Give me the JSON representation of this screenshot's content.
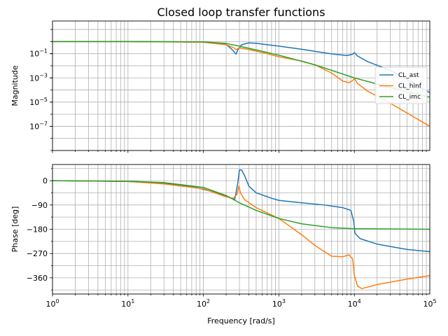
{
  "chart_data": {
    "type": "line",
    "title": "Closed loop transfer functions",
    "xscale": "log",
    "xlim": [
      1,
      100000
    ],
    "xticks": [
      {
        "value": 1,
        "base": "10",
        "exp": "0"
      },
      {
        "value": 10,
        "base": "10",
        "exp": "1"
      },
      {
        "value": 100,
        "base": "10",
        "exp": "2"
      },
      {
        "value": 1000,
        "base": "10",
        "exp": "3"
      },
      {
        "value": 10000,
        "base": "10",
        "exp": "4"
      },
      {
        "value": 100000,
        "base": "10",
        "exp": "5"
      }
    ],
    "xlabel": "Frequency [rad/s]",
    "grid": true,
    "series_colors": {
      "CL_ast": "#1f77b4",
      "CL_hinf": "#ff7f0e",
      "CL_imc": "#2ca02c"
    },
    "magnitude": {
      "ylabel": "Magnitude",
      "yscale": "log",
      "ylim": [
        1e-09,
        50
      ],
      "yticks": [
        {
          "value": 0.1,
          "base": "10",
          "exp": "−1"
        },
        {
          "value": 0.001,
          "base": "10",
          "exp": "−3"
        },
        {
          "value": 1e-05,
          "base": "10",
          "exp": "−5"
        },
        {
          "value": 1e-07,
          "base": "10",
          "exp": "−7"
        }
      ],
      "legend_position": "right",
      "series": [
        {
          "name": "CL_ast",
          "points": [
            [
              1,
              1
            ],
            [
              10,
              1
            ],
            [
              100,
              0.93
            ],
            [
              200,
              0.58
            ],
            [
              240,
              0.22
            ],
            [
              270,
              0.09
            ],
            [
              285,
              0.2
            ],
            [
              320,
              0.55
            ],
            [
              400,
              0.78
            ],
            [
              500,
              0.72
            ],
            [
              1000,
              0.42
            ],
            [
              2000,
              0.23
            ],
            [
              5000,
              0.095
            ],
            [
              8000,
              0.07
            ],
            [
              9500,
              0.09
            ],
            [
              10000,
              0.12
            ],
            [
              11000,
              0.065
            ],
            [
              15000,
              0.022
            ],
            [
              30000,
              0.0042
            ],
            [
              100000,
              6e-05
            ]
          ]
        },
        {
          "name": "CL_hinf",
          "points": [
            [
              1,
              1
            ],
            [
              10,
              1
            ],
            [
              100,
              0.88
            ],
            [
              200,
              0.55
            ],
            [
              250,
              0.32
            ],
            [
              270,
              0.22
            ],
            [
              300,
              0.3
            ],
            [
              400,
              0.22
            ],
            [
              700,
              0.1
            ],
            [
              1000,
              0.055
            ],
            [
              2000,
              0.025
            ],
            [
              3000,
              0.012
            ],
            [
              5000,
              0.0025
            ],
            [
              7000,
              0.00055
            ],
            [
              8500,
              0.0004
            ],
            [
              9500,
              0.0006
            ],
            [
              10000,
              0.0009
            ],
            [
              11000,
              0.00035
            ],
            [
              15000,
              8e-05
            ],
            [
              30000,
              8e-06
            ],
            [
              100000,
              1e-07
            ]
          ]
        },
        {
          "name": "CL_imc",
          "points": [
            [
              1,
              1
            ],
            [
              10,
              1
            ],
            [
              100,
              0.95
            ],
            [
              200,
              0.7
            ],
            [
              300,
              0.42
            ],
            [
              1000,
              0.075
            ],
            [
              3000,
              0.012
            ],
            [
              10000,
              0.001
            ],
            [
              30000,
              0.00016
            ],
            [
              100000,
              2.5e-05
            ]
          ]
        }
      ]
    },
    "phase": {
      "ylabel": "Phase [deg]",
      "ylim": [
        -420,
        60
      ],
      "yticks": [
        0,
        -90,
        -180,
        -270,
        -360
      ],
      "ytick_labels": [
        "0",
        "−90",
        "−180",
        "−270",
        "−360"
      ],
      "series": [
        {
          "name": "CL_ast",
          "points": [
            [
              1,
              0
            ],
            [
              10,
              -3
            ],
            [
              30,
              -10
            ],
            [
              80,
              -25
            ],
            [
              150,
              -45
            ],
            [
              220,
              -62
            ],
            [
              260,
              -70
            ],
            [
              285,
              -10
            ],
            [
              300,
              40
            ],
            [
              320,
              40
            ],
            [
              350,
              20
            ],
            [
              400,
              -20
            ],
            [
              500,
              -45
            ],
            [
              800,
              -65
            ],
            [
              1000,
              -73
            ],
            [
              2000,
              -82
            ],
            [
              4000,
              -90
            ],
            [
              7000,
              -100
            ],
            [
              9000,
              -110
            ],
            [
              9800,
              -150
            ],
            [
              10200,
              -195
            ],
            [
              12000,
              -215
            ],
            [
              20000,
              -235
            ],
            [
              50000,
              -255
            ],
            [
              100000,
              -263
            ]
          ]
        },
        {
          "name": "CL_hinf",
          "points": [
            [
              1,
              0
            ],
            [
              10,
              -3
            ],
            [
              30,
              -12
            ],
            [
              100,
              -30
            ],
            [
              200,
              -60
            ],
            [
              250,
              -65
            ],
            [
              280,
              -50
            ],
            [
              295,
              -20
            ],
            [
              310,
              -45
            ],
            [
              350,
              -70
            ],
            [
              500,
              -100
            ],
            [
              1000,
              -140
            ],
            [
              2000,
              -200
            ],
            [
              3000,
              -240
            ],
            [
              5000,
              -280
            ],
            [
              7000,
              -282
            ],
            [
              8500,
              -275
            ],
            [
              9500,
              -290
            ],
            [
              10000,
              -350
            ],
            [
              11000,
              -390
            ],
            [
              12500,
              -400
            ],
            [
              20000,
              -385
            ],
            [
              50000,
              -365
            ],
            [
              100000,
              -352
            ]
          ]
        },
        {
          "name": "CL_imc",
          "points": [
            [
              1,
              0
            ],
            [
              10,
              -2
            ],
            [
              30,
              -7
            ],
            [
              100,
              -25
            ],
            [
              200,
              -55
            ],
            [
              300,
              -82
            ],
            [
              500,
              -110
            ],
            [
              1000,
              -140
            ],
            [
              2000,
              -160
            ],
            [
              5000,
              -174
            ],
            [
              10000,
              -178
            ],
            [
              100000,
              -180
            ]
          ]
        }
      ]
    }
  }
}
